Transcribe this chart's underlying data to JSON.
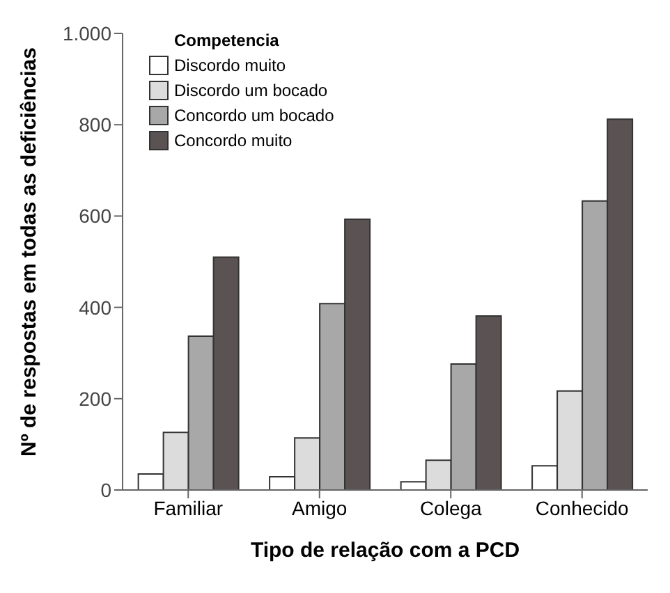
{
  "chart_data": {
    "type": "bar",
    "xlabel": "Tipo de relação com a PCD",
    "ylabel": "Nº de respostas em todas as deficiências",
    "legend_title": "Competencia",
    "legend": "top left",
    "grid": false,
    "categories": [
      "Familiar",
      "Amigo",
      "Colega",
      "Conhecido"
    ],
    "series": [
      {
        "name": "Discordo muito",
        "color": "#ffffff",
        "values": [
          35,
          29,
          18,
          53
        ]
      },
      {
        "name": "Discordo um bocado",
        "color": "#dcdcdc",
        "values": [
          126,
          114,
          65,
          217
        ]
      },
      {
        "name": "Concordo um bocado",
        "color": "#a8a8a8",
        "values": [
          337,
          408,
          276,
          633
        ]
      },
      {
        "name": "Concordo muito",
        "color": "#5b5353",
        "values": [
          510,
          593,
          381,
          812
        ]
      }
    ],
    "ylim": [
      0,
      1000
    ],
    "yticks": [
      0,
      200,
      400,
      600,
      800,
      {
        "value": 1000,
        "label": "1.000"
      }
    ]
  }
}
